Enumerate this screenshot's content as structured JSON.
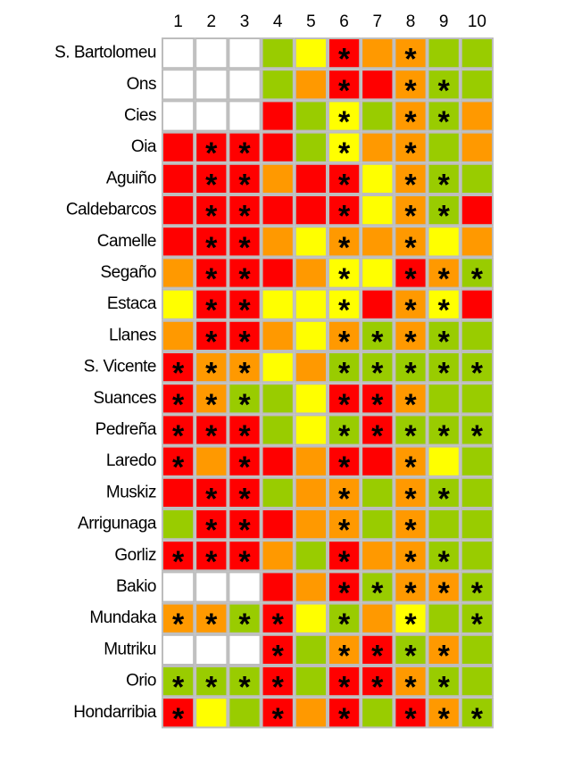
{
  "columns": [
    "1",
    "2",
    "3",
    "4",
    "5",
    "6",
    "7",
    "8",
    "9",
    "10"
  ],
  "rows": [
    {
      "label": "S. Bartolomeu",
      "colors": [
        "#ffffff",
        "#ffffff",
        "#ffffff",
        "#99cc00",
        "#ffff00",
        "#ff0000",
        "#ff9900",
        "#ff9900",
        "#99cc00",
        "#99cc00"
      ],
      "marks": [
        null,
        null,
        null,
        null,
        null,
        "*",
        null,
        "*",
        null,
        null
      ]
    },
    {
      "label": "Ons",
      "colors": [
        "#ffffff",
        "#ffffff",
        "#ffffff",
        "#99cc00",
        "#ff9900",
        "#ff0000",
        "#ff0000",
        "#ff9900",
        "#99cc00",
        "#99cc00"
      ],
      "marks": [
        null,
        null,
        null,
        null,
        null,
        "*",
        null,
        "*",
        "*",
        null
      ]
    },
    {
      "label": "Cies",
      "colors": [
        "#ffffff",
        "#ffffff",
        "#ffffff",
        "#ff0000",
        "#99cc00",
        "#ffff00",
        "#99cc00",
        "#ff9900",
        "#99cc00",
        "#ff9900"
      ],
      "marks": [
        null,
        null,
        null,
        null,
        null,
        "*",
        null,
        "*",
        "*",
        null
      ]
    },
    {
      "label": "Oia",
      "colors": [
        "#ff0000",
        "#ff0000",
        "#ff0000",
        "#ff0000",
        "#99cc00",
        "#ffff00",
        "#ff9900",
        "#ff9900",
        "#99cc00",
        "#ff9900"
      ],
      "marks": [
        null,
        "*",
        "*",
        null,
        null,
        "*",
        null,
        "*",
        null,
        null
      ]
    },
    {
      "label": "Aguiño",
      "colors": [
        "#ff0000",
        "#ff0000",
        "#ff0000",
        "#ff9900",
        "#ff0000",
        "#ff0000",
        "#ffff00",
        "#ff9900",
        "#99cc00",
        "#99cc00"
      ],
      "marks": [
        null,
        "*",
        "*",
        null,
        null,
        "*",
        null,
        "*",
        "*",
        null
      ]
    },
    {
      "label": "Caldebarcos",
      "colors": [
        "#ff0000",
        "#ff0000",
        "#ff0000",
        "#ff0000",
        "#ff0000",
        "#ff0000",
        "#ffff00",
        "#ff9900",
        "#99cc00",
        "#ff0000"
      ],
      "marks": [
        null,
        "*",
        "*",
        null,
        null,
        "*",
        null,
        "*",
        "*",
        null
      ]
    },
    {
      "label": "Camelle",
      "colors": [
        "#ff0000",
        "#ff0000",
        "#ff0000",
        "#ff9900",
        "#ffff00",
        "#ff9900",
        "#ff9900",
        "#ff9900",
        "#ffff00",
        "#ff9900"
      ],
      "marks": [
        null,
        "*",
        "*",
        null,
        null,
        "*",
        null,
        "*",
        null,
        null
      ]
    },
    {
      "label": "Segaño",
      "colors": [
        "#ff9900",
        "#ff0000",
        "#ff0000",
        "#ff0000",
        "#ff9900",
        "#ffff00",
        "#ffff00",
        "#ff0000",
        "#ff9900",
        "#99cc00"
      ],
      "marks": [
        null,
        "*",
        "*",
        null,
        null,
        "*",
        null,
        "*",
        "*",
        "*"
      ]
    },
    {
      "label": "Estaca",
      "colors": [
        "#ffff00",
        "#ff0000",
        "#ff0000",
        "#ffff00",
        "#ffff00",
        "#ffff00",
        "#ff0000",
        "#ff9900",
        "#ffff00",
        "#ff0000"
      ],
      "marks": [
        null,
        "*",
        "*",
        null,
        null,
        "*",
        null,
        "*",
        "*",
        null
      ]
    },
    {
      "label": "Llanes",
      "colors": [
        "#ff9900",
        "#ff0000",
        "#ff0000",
        "#ff9900",
        "#ffff00",
        "#ff9900",
        "#99cc00",
        "#ff9900",
        "#99cc00",
        "#99cc00"
      ],
      "marks": [
        null,
        "*",
        "*",
        null,
        null,
        "*",
        "*",
        "*",
        "*",
        null
      ]
    },
    {
      "label": "S. Vicente",
      "colors": [
        "#ff0000",
        "#ff9900",
        "#ff9900",
        "#ffff00",
        "#ff9900",
        "#99cc00",
        "#99cc00",
        "#99cc00",
        "#99cc00",
        "#99cc00"
      ],
      "marks": [
        "*",
        "*",
        "*",
        null,
        null,
        "*",
        "*",
        "*",
        "*",
        "*"
      ]
    },
    {
      "label": "Suances",
      "colors": [
        "#ff0000",
        "#ff9900",
        "#99cc00",
        "#99cc00",
        "#ffff00",
        "#ff0000",
        "#ff0000",
        "#ff9900",
        "#99cc00",
        "#99cc00"
      ],
      "marks": [
        "*",
        "*",
        "*",
        null,
        null,
        "*",
        "*",
        "*",
        null,
        null
      ]
    },
    {
      "label": "Pedreña",
      "colors": [
        "#ff0000",
        "#ff0000",
        "#ff0000",
        "#99cc00",
        "#ffff00",
        "#99cc00",
        "#ff0000",
        "#99cc00",
        "#99cc00",
        "#99cc00"
      ],
      "marks": [
        "*",
        "*",
        "*",
        null,
        null,
        "*",
        "*",
        "*",
        "*",
        "*"
      ]
    },
    {
      "label": "Laredo",
      "colors": [
        "#ff0000",
        "#ff9900",
        "#ff0000",
        "#ff0000",
        "#ff9900",
        "#ff0000",
        "#ff0000",
        "#ff9900",
        "#ffff00",
        "#99cc00"
      ],
      "marks": [
        "*",
        null,
        "*",
        null,
        null,
        "*",
        null,
        "*",
        null,
        null
      ]
    },
    {
      "label": "Muskiz",
      "colors": [
        "#ff0000",
        "#ff0000",
        "#ff0000",
        "#99cc00",
        "#ff9900",
        "#ff9900",
        "#99cc00",
        "#ff9900",
        "#99cc00",
        "#99cc00"
      ],
      "marks": [
        null,
        "*",
        "*",
        null,
        null,
        "*",
        null,
        "*",
        "*",
        null
      ]
    },
    {
      "label": "Arrigunaga",
      "colors": [
        "#99cc00",
        "#ff0000",
        "#ff0000",
        "#ff0000",
        "#ff9900",
        "#ff9900",
        "#99cc00",
        "#ff9900",
        "#99cc00",
        "#99cc00"
      ],
      "marks": [
        null,
        "*",
        "*",
        null,
        null,
        "*",
        null,
        "*",
        null,
        null
      ]
    },
    {
      "label": "Gorliz",
      "colors": [
        "#ff0000",
        "#ff0000",
        "#ff0000",
        "#ff9900",
        "#99cc00",
        "#ff0000",
        "#ff9900",
        "#ff9900",
        "#99cc00",
        "#99cc00"
      ],
      "marks": [
        "*",
        "*",
        "*",
        null,
        null,
        "*",
        null,
        "*",
        "*",
        null
      ]
    },
    {
      "label": "Bakio",
      "colors": [
        "#ffffff",
        "#ffffff",
        "#ffffff",
        "#ff0000",
        "#ff9900",
        "#ff0000",
        "#99cc00",
        "#ff9900",
        "#ff9900",
        "#99cc00"
      ],
      "marks": [
        null,
        null,
        null,
        null,
        null,
        "*",
        "*",
        "*",
        "*",
        "*"
      ]
    },
    {
      "label": "Mundaka",
      "colors": [
        "#ff9900",
        "#ff9900",
        "#99cc00",
        "#ff0000",
        "#ffff00",
        "#99cc00",
        "#ff9900",
        "#ffff00",
        "#99cc00",
        "#99cc00"
      ],
      "marks": [
        "*",
        "*",
        "*",
        "*",
        null,
        "*",
        null,
        "*",
        null,
        "*"
      ]
    },
    {
      "label": "Mutriku",
      "colors": [
        "#ffffff",
        "#ffffff",
        "#ffffff",
        "#ff0000",
        "#99cc00",
        "#ff9900",
        "#ff0000",
        "#99cc00",
        "#ff9900",
        "#99cc00"
      ],
      "marks": [
        null,
        null,
        null,
        "*",
        null,
        "*",
        "*",
        "*",
        "*",
        null
      ]
    },
    {
      "label": "Orio",
      "colors": [
        "#99cc00",
        "#99cc00",
        "#99cc00",
        "#ff0000",
        "#99cc00",
        "#ff0000",
        "#ff0000",
        "#ff9900",
        "#99cc00",
        "#99cc00"
      ],
      "marks": [
        "*",
        "*",
        "*",
        "*",
        null,
        "*",
        "*",
        "*",
        "*",
        null
      ]
    },
    {
      "label": "Hondarribia",
      "colors": [
        "#ff0000",
        "#ffff00",
        "#99cc00",
        "#ff0000",
        "#ff9900",
        "#ff0000",
        "#99cc00",
        "#ff0000",
        "#ff9900",
        "#99cc00"
      ],
      "marks": [
        "*",
        null,
        null,
        "*",
        null,
        "*",
        null,
        "*",
        "*",
        "*"
      ]
    }
  ]
}
